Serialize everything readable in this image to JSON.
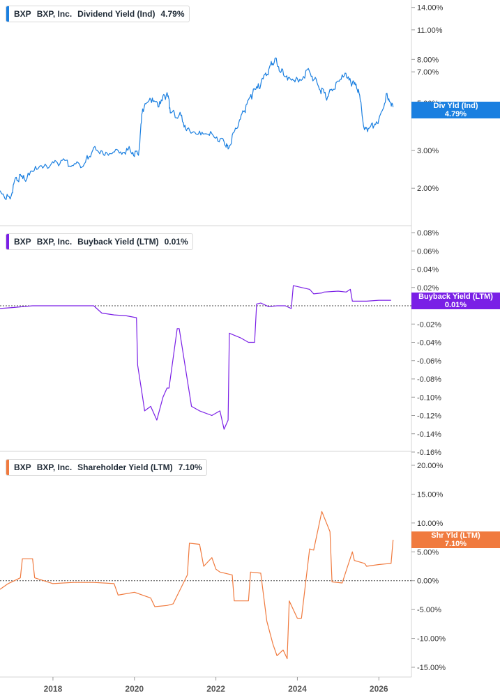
{
  "colors": {
    "dividend": "#1a7fe0",
    "buyback": "#7a1fe6",
    "shareholder": "#f07a3e",
    "axis_text": "#333333",
    "grid": "#d6d6d6"
  },
  "panels": [
    {
      "id": "dividend",
      "legend": {
        "ticker": "BXP",
        "company": "BXP, Inc.",
        "metric": "Dividend Yield (Ind)",
        "value": "4.79%"
      },
      "tag": {
        "label": "Div Yld (Ind)",
        "value": "4.79%"
      },
      "ticks": [
        "14.00%",
        "11.00%",
        "8.00%",
        "7.00%",
        "5.00%",
        "3.00%",
        "2.00%"
      ]
    },
    {
      "id": "buyback",
      "legend": {
        "ticker": "BXP",
        "company": "BXP, Inc.",
        "metric": "Buyback Yield (LTM)",
        "value": "0.01%"
      },
      "tag": {
        "label": "Buyback Yield (LTM)",
        "value": "0.01%"
      },
      "ticks": [
        "0.08%",
        "0.06%",
        "0.04%",
        "0.02%",
        "0.00%",
        "-0.02%",
        "-0.04%",
        "-0.06%",
        "-0.08%",
        "-0.10%",
        "-0.12%",
        "-0.14%",
        "-0.16%"
      ]
    },
    {
      "id": "shareholder",
      "legend": {
        "ticker": "BXP",
        "company": "BXP, Inc.",
        "metric": "Shareholder Yield (LTM)",
        "value": "7.10%"
      },
      "tag": {
        "label": "Shr Yld (LTM)",
        "value": "7.10%"
      },
      "ticks": [
        "20.00%",
        "15.00%",
        "10.00%",
        "5.00%",
        "0.00%",
        "-5.00%",
        "-10.00%",
        "-15.00%"
      ]
    }
  ],
  "x_axis": {
    "labels": [
      "2018",
      "2020",
      "2022",
      "2024",
      "2026"
    ]
  },
  "chart_data": [
    {
      "type": "line",
      "title": "",
      "series": [
        {
          "name": "Dividend Yield (Ind)"
        }
      ],
      "yscale": "log",
      "ylim": [
        1.6,
        14.5
      ],
      "yticks": [
        14,
        11,
        8,
        7,
        5,
        3,
        2
      ],
      "xlim": [
        2016.7,
        2026.8
      ],
      "x": [
        2016.7,
        2016.95,
        2017.1,
        2017.3,
        2017.6,
        2017.9,
        2018.2,
        2018.5,
        2018.8,
        2019.0,
        2019.3,
        2019.6,
        2019.9,
        2020.1,
        2020.2,
        2020.4,
        2020.6,
        2020.8,
        2020.9,
        2021.1,
        2021.3,
        2021.6,
        2021.9,
        2022.2,
        2022.3,
        2022.5,
        2022.7,
        2022.9,
        2023.1,
        2023.3,
        2023.45,
        2023.6,
        2023.8,
        2024.0,
        2024.3,
        2024.5,
        2024.7,
        2024.9,
        2025.15,
        2025.35,
        2025.5,
        2025.65,
        2025.8,
        2026.0,
        2026.2,
        2026.35
      ],
      "y": [
        1.95,
        1.78,
        2.25,
        2.2,
        2.45,
        2.5,
        2.7,
        2.55,
        2.65,
        3.1,
        2.95,
        3.0,
        3.0,
        2.85,
        4.7,
        5.2,
        4.8,
        5.6,
        4.5,
        4.4,
        3.8,
        3.7,
        3.6,
        3.3,
        3.05,
        3.8,
        4.6,
        5.5,
        6.1,
        7.2,
        8.1,
        7.0,
        6.6,
        6.5,
        7.0,
        6.1,
        5.3,
        5.8,
        6.7,
        6.2,
        5.8,
        3.75,
        3.9,
        4.2,
        5.55,
        4.79
      ]
    },
    {
      "type": "line",
      "title": "",
      "series": [
        {
          "name": "Buyback Yield (LTM)"
        }
      ],
      "ylim": [
        -0.16,
        0.08
      ],
      "yticks": [
        0.08,
        0.06,
        0.04,
        0.02,
        0.0,
        -0.02,
        -0.04,
        -0.06,
        -0.08,
        -0.1,
        -0.12,
        -0.14,
        -0.16
      ],
      "xlim": [
        2016.7,
        2026.8
      ],
      "x": [
        2016.7,
        2017.0,
        2017.5,
        2018.0,
        2018.5,
        2019.0,
        2019.2,
        2019.5,
        2019.8,
        2020.05,
        2020.08,
        2020.2,
        2020.25,
        2020.4,
        2020.55,
        2020.7,
        2020.8,
        2020.85,
        2021.05,
        2021.1,
        2021.4,
        2021.6,
        2021.9,
        2022.1,
        2022.2,
        2022.3,
        2022.33,
        2022.6,
        2022.8,
        2022.95,
        2023.0,
        2023.1,
        2023.3,
        2023.5,
        2023.7,
        2023.85,
        2023.9,
        2024.3,
        2024.4,
        2024.6,
        2024.65,
        2025.0,
        2025.2,
        2025.3,
        2025.35,
        2025.7,
        2026.0,
        2026.3
      ],
      "y": [
        -0.003,
        -0.002,
        0.0,
        0.0,
        0.0,
        0.0,
        -0.008,
        -0.01,
        -0.011,
        -0.013,
        -0.065,
        -0.1,
        -0.115,
        -0.11,
        -0.125,
        -0.1,
        -0.09,
        -0.09,
        -0.025,
        -0.025,
        -0.11,
        -0.115,
        -0.12,
        -0.115,
        -0.135,
        -0.125,
        -0.03,
        -0.035,
        -0.04,
        -0.04,
        0.002,
        0.003,
        -0.001,
        0.0,
        0.0,
        -0.003,
        0.022,
        0.018,
        0.013,
        0.014,
        0.015,
        0.016,
        0.015,
        0.018,
        0.005,
        0.005,
        0.006,
        0.006
      ]
    },
    {
      "type": "line",
      "title": "",
      "series": [
        {
          "name": "Shareholder Yield (LTM)"
        }
      ],
      "ylim": [
        -15,
        20
      ],
      "yticks": [
        20,
        15,
        10,
        5,
        0,
        -5,
        -10,
        -15
      ],
      "xlim": [
        2016.7,
        2026.8
      ],
      "x": [
        2016.7,
        2016.9,
        2017.2,
        2017.25,
        2017.5,
        2017.55,
        2018.0,
        2018.5,
        2019.0,
        2019.5,
        2019.6,
        2020.0,
        2020.4,
        2020.5,
        2020.8,
        2020.95,
        2021.3,
        2021.35,
        2021.6,
        2021.7,
        2021.9,
        2022.0,
        2022.1,
        2022.4,
        2022.45,
        2022.8,
        2022.85,
        2023.1,
        2023.25,
        2023.4,
        2023.5,
        2023.65,
        2023.75,
        2023.8,
        2024.0,
        2024.1,
        2024.3,
        2024.4,
        2024.6,
        2024.8,
        2024.85,
        2025.1,
        2025.35,
        2025.4,
        2025.65,
        2025.7,
        2026.0,
        2026.15,
        2026.3,
        2026.35
      ],
      "y": [
        -1.5,
        -0.5,
        0.5,
        3.8,
        3.8,
        0.5,
        -0.5,
        -0.3,
        -0.3,
        -0.5,
        -2.5,
        -2.0,
        -3.0,
        -4.5,
        -4.3,
        -4.0,
        1.0,
        6.5,
        6.3,
        2.5,
        4.0,
        2.0,
        1.5,
        1.0,
        -3.5,
        -3.5,
        1.5,
        1.3,
        -7.0,
        -11.0,
        -13.0,
        -12.0,
        -13.5,
        -3.5,
        -6.5,
        -6.5,
        5.5,
        5.3,
        12.0,
        8.5,
        -0.2,
        -0.4,
        5.0,
        3.5,
        3.0,
        2.5,
        2.8,
        2.9,
        3.0,
        7.1
      ]
    }
  ]
}
